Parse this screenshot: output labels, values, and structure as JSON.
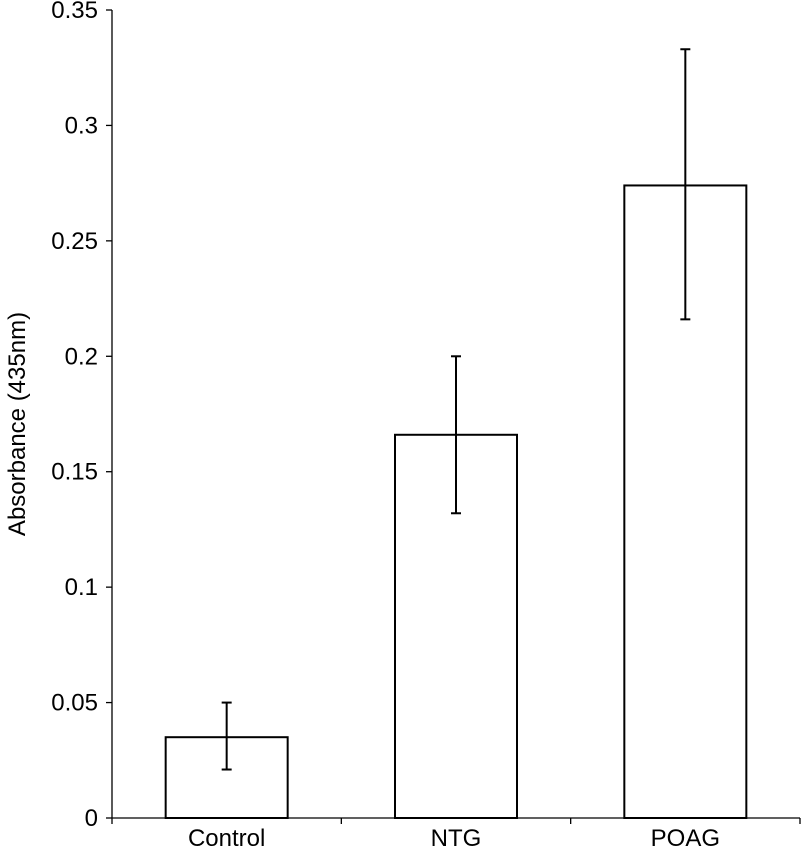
{
  "chart_data": {
    "type": "bar",
    "categories": [
      "Control",
      "NTG",
      "POAG"
    ],
    "values": [
      0.035,
      0.166,
      0.274
    ],
    "error_low": [
      0.021,
      0.132,
      0.216
    ],
    "error_high": [
      0.05,
      0.2,
      0.333
    ],
    "title": "",
    "xlabel": "",
    "ylabel": "Absorbance (435nm)",
    "ylim": [
      0,
      0.35
    ],
    "yticks": [
      0,
      0.05,
      0.1,
      0.15,
      0.2,
      0.25,
      0.3,
      0.35
    ],
    "ytick_labels": [
      "0",
      "0.05",
      "0.1",
      "0.15",
      "0.2",
      "0.25",
      "0.3",
      "0.35"
    ],
    "grid": false,
    "legend": "none",
    "bar_fill": "#ffffff",
    "bar_edge": "#000000"
  }
}
